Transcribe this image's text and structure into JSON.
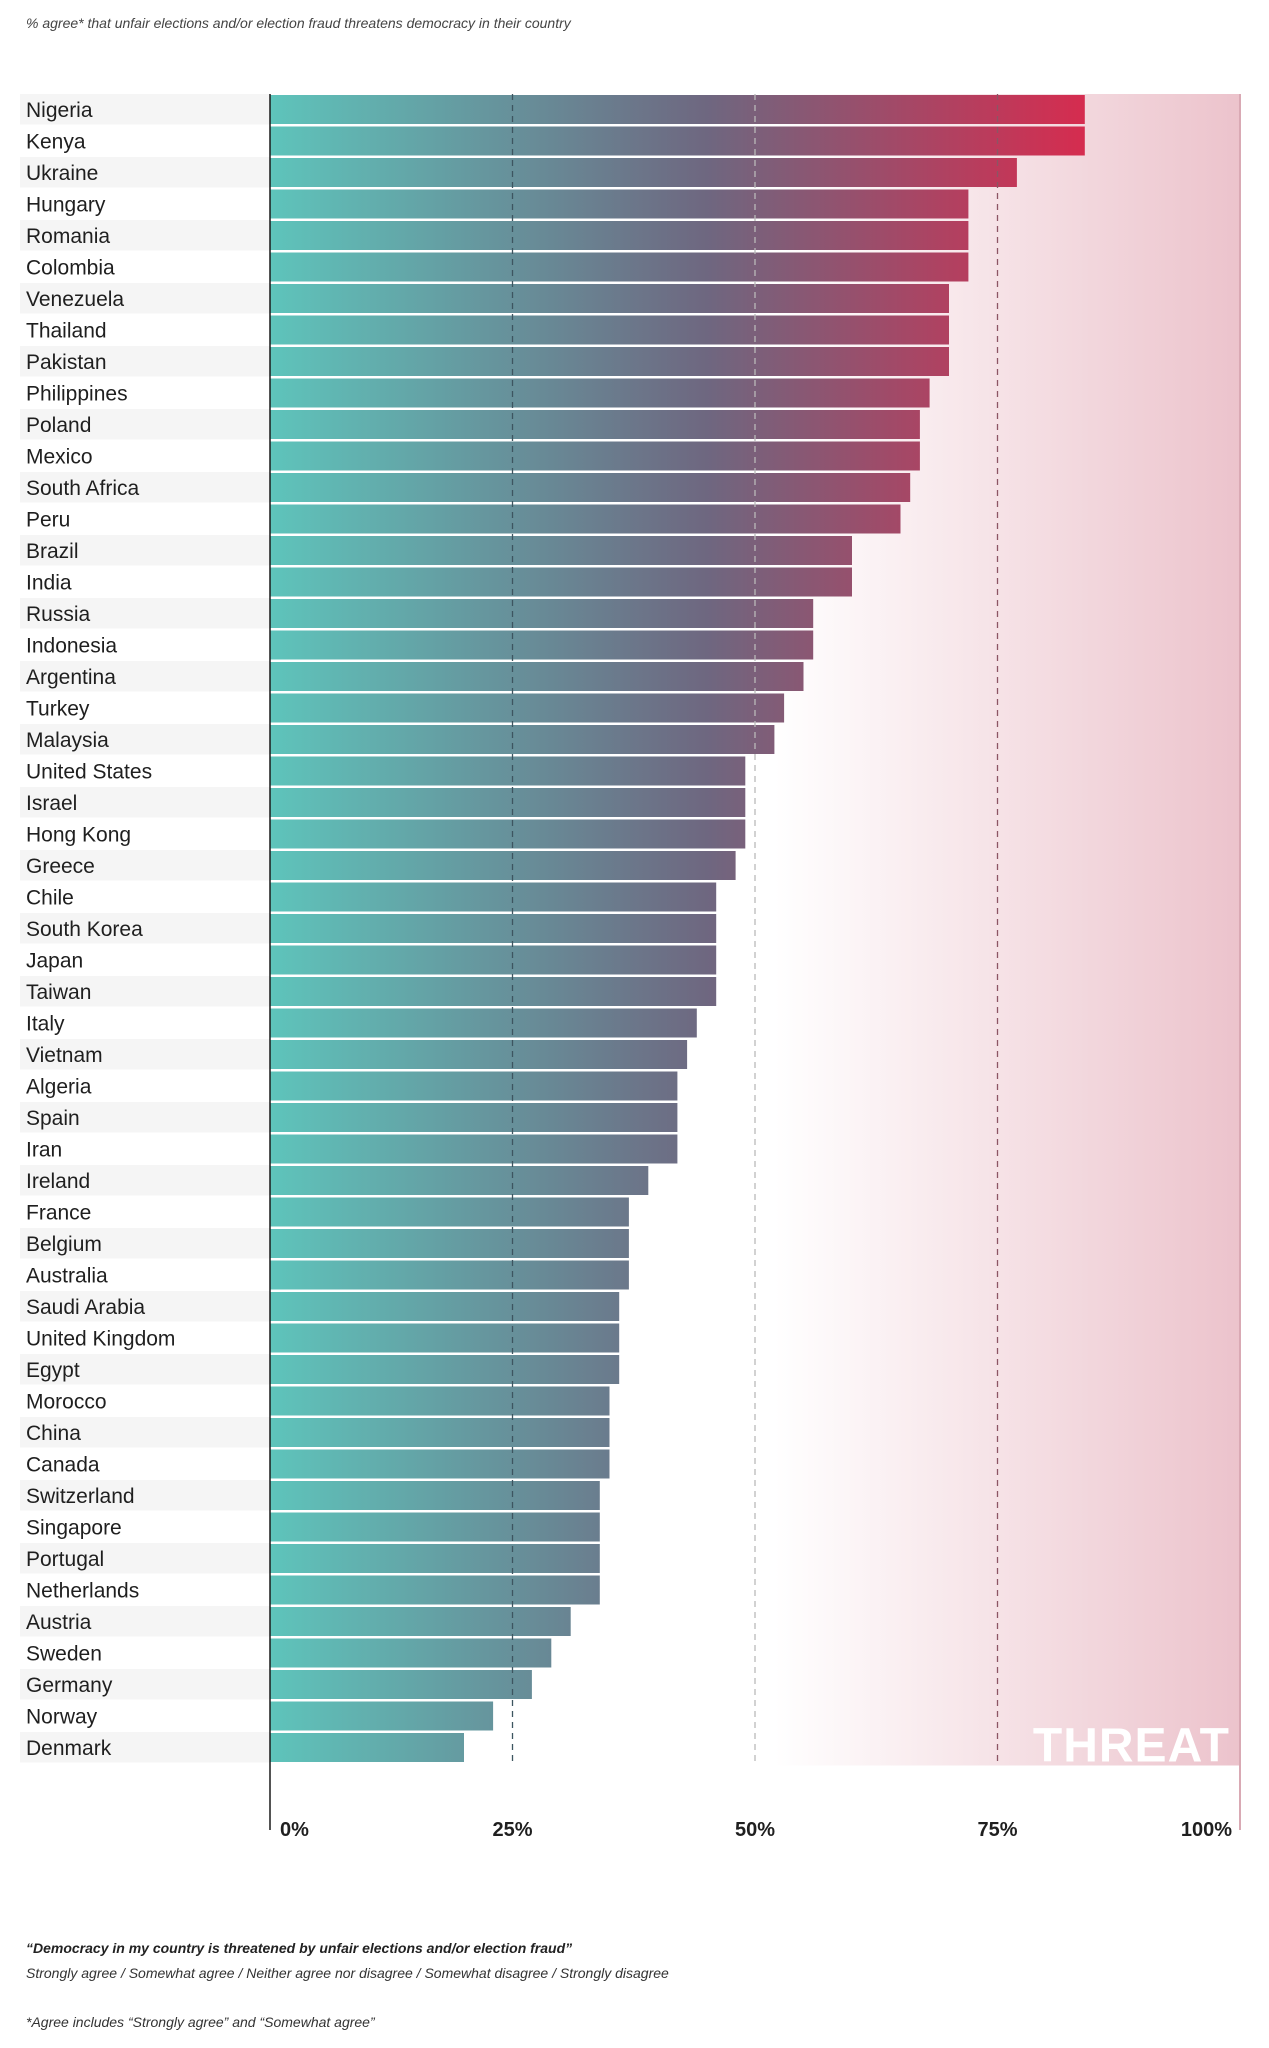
{
  "subtitle": "% agree* that unfair elections and/or election fraud threatens democracy in their country",
  "footer": {
    "question": "“Democracy in my country is threatened by unfair elections and/or election fraud”",
    "scale": "Strongly agree / Somewhat agree / Neither agree nor disagree / Somewhat disagree / Strongly disagree",
    "footnote": "*Agree includes “Strongly agree” and “Somewhat agree”"
  },
  "colors": {
    "bar_low": "#5ec4bb",
    "bar_mid": "#6e6780",
    "bar_high": "#e0264a",
    "threat_zone": "#ecc3cc"
  },
  "chart_data": {
    "type": "bar",
    "orientation": "horizontal",
    "annotation": "THREAT",
    "xlim": [
      0,
      100
    ],
    "x_ticks": [
      "0%",
      "25%",
      "50%",
      "75%",
      "100%"
    ],
    "grid": "dashed vertical lines at 25%, 50%, 75%",
    "categories": [
      "Nigeria",
      "Kenya",
      "Ukraine",
      "Hungary",
      "Romania",
      "Colombia",
      "Venezuela",
      "Thailand",
      "Pakistan",
      "Philippines",
      "Poland",
      "Mexico",
      "South Africa",
      "Peru",
      "Brazil",
      "India",
      "Russia",
      "Indonesia",
      "Argentina",
      "Turkey",
      "Malaysia",
      "United States",
      "Israel",
      "Hong Kong",
      "Greece",
      "Chile",
      "South Korea",
      "Japan",
      "Taiwan",
      "Italy",
      "Vietnam",
      "Algeria",
      "Spain",
      "Iran",
      "Ireland",
      "France",
      "Belgium",
      "Australia",
      "Saudi Arabia",
      "United Kingdom",
      "Egypt",
      "Morocco",
      "China",
      "Canada",
      "Switzerland",
      "Singapore",
      "Portugal",
      "Netherlands",
      "Austria",
      "Sweden",
      "Germany",
      "Norway",
      "Denmark"
    ],
    "values": [
      84,
      84,
      77,
      72,
      72,
      72,
      70,
      70,
      70,
      68,
      67,
      67,
      66,
      65,
      60,
      60,
      56,
      56,
      55,
      53,
      52,
      49,
      49,
      49,
      48,
      46,
      46,
      46,
      46,
      44,
      43,
      42,
      42,
      42,
      39,
      37,
      37,
      37,
      36,
      36,
      36,
      35,
      35,
      35,
      34,
      34,
      34,
      34,
      31,
      29,
      27,
      23,
      20
    ]
  }
}
